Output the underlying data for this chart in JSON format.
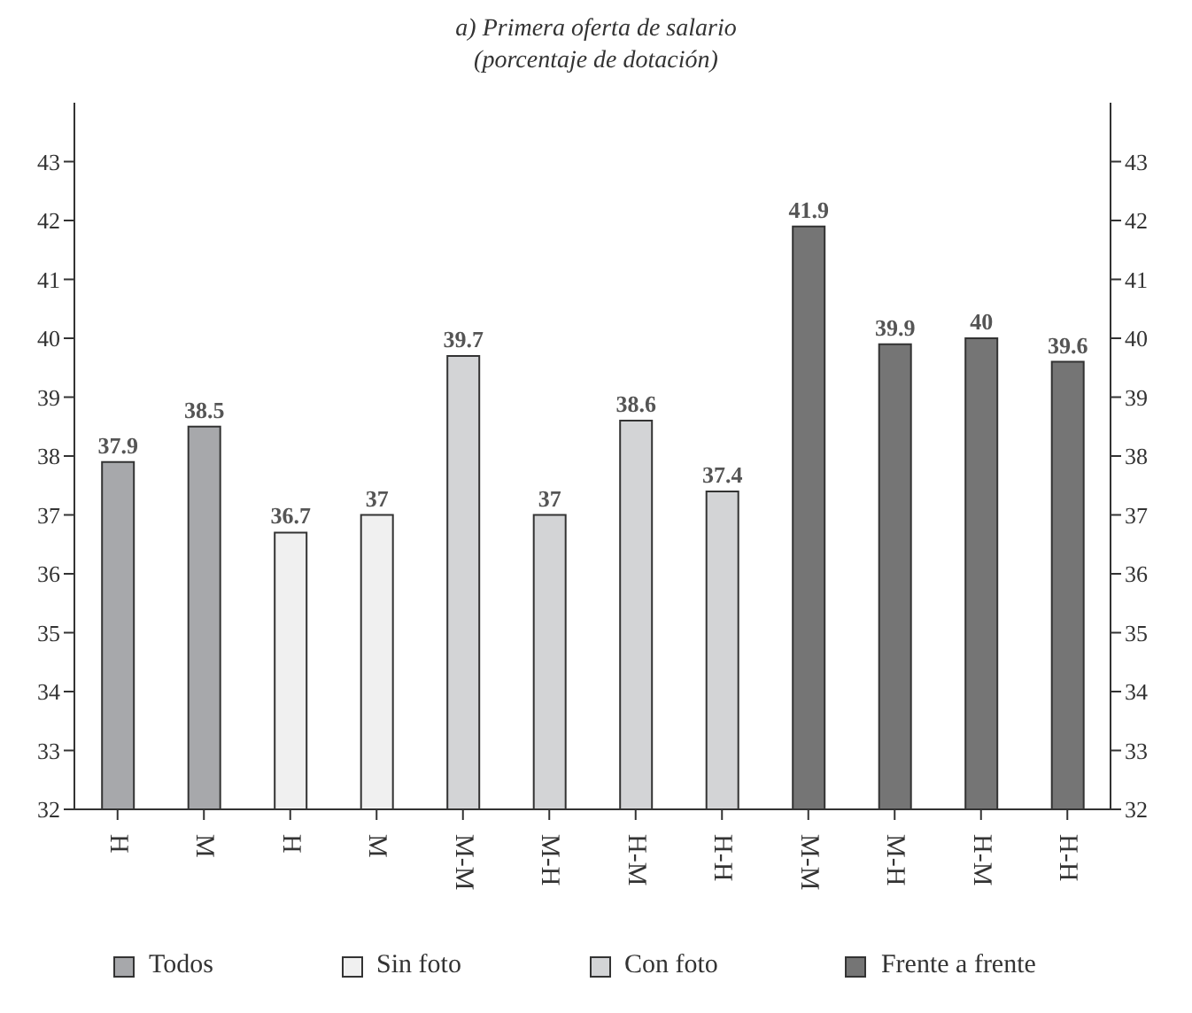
{
  "chart_data": {
    "type": "bar",
    "title": "a) Primera oferta de salario",
    "subtitle": "(porcentaje de dotación)",
    "categories": [
      "H",
      "M",
      "H",
      "M",
      "M-M",
      "M-H",
      "H-M",
      "H-H",
      "M-M",
      "M-H",
      "H-M",
      "H-H"
    ],
    "series": [
      {
        "name": "Todos",
        "color": "#a7a8ab",
        "values": [
          37.9,
          38.5,
          null,
          null,
          null,
          null,
          null,
          null,
          null,
          null,
          null,
          null
        ]
      },
      {
        "name": "Sin foto",
        "color": "#f0f0f0",
        "values": [
          null,
          null,
          36.7,
          37,
          null,
          null,
          null,
          null,
          null,
          null,
          null,
          null
        ]
      },
      {
        "name": "Con foto",
        "color": "#d3d4d6",
        "values": [
          null,
          null,
          null,
          null,
          39.7,
          37,
          38.6,
          37.4,
          null,
          null,
          null,
          null
        ]
      },
      {
        "name": "Frente a frente",
        "color": "#757575",
        "values": [
          null,
          null,
          null,
          null,
          null,
          null,
          null,
          null,
          41.9,
          39.9,
          40,
          39.6
        ]
      }
    ],
    "ylim": [
      32,
      44
    ],
    "yticks": [
      32,
      33,
      34,
      35,
      36,
      37,
      38,
      39,
      40,
      41,
      42,
      43
    ],
    "y2lim": [
      32,
      44
    ],
    "y2ticks": [
      32,
      33,
      34,
      35,
      36,
      37,
      38,
      39,
      40,
      41,
      42,
      43
    ],
    "data_labels": true,
    "grid": false,
    "legend": "bottom"
  }
}
